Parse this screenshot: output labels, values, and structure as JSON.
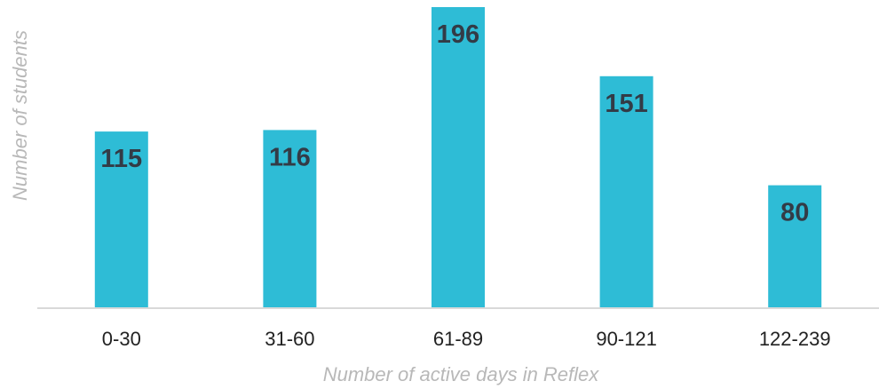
{
  "chart_data": {
    "type": "bar",
    "title": "",
    "xlabel": "Number of active days in Reflex",
    "ylabel": "Number of students",
    "categories": [
      "0-30",
      "31-60",
      "61-89",
      "90-121",
      "122-239"
    ],
    "values": [
      115,
      116,
      196,
      151,
      80
    ],
    "data_labels": [
      "115",
      "116",
      "196",
      "151",
      "80"
    ],
    "ylim": [
      0,
      196
    ],
    "grid": false,
    "legend": "none",
    "colors": {
      "bar": "#2ebcd6",
      "axis_line": "#d9d9d9",
      "tick_label": "#222222",
      "value_label": "#333b46",
      "axis_title": "#b8b8b8"
    }
  }
}
